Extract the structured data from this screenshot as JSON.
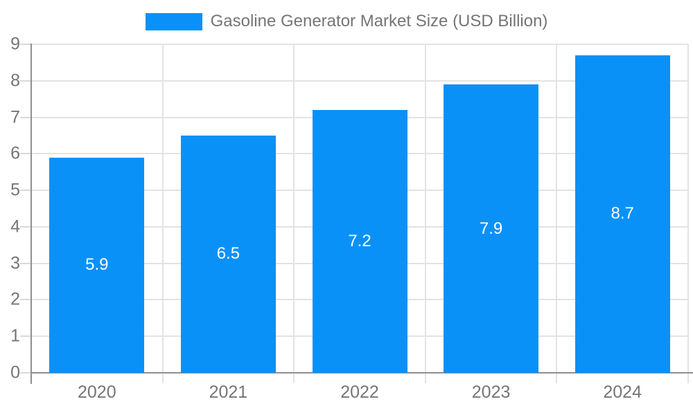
{
  "chart_data": {
    "type": "bar",
    "title": "Gasoline Generator Market Size (USD Billion)",
    "categories": [
      "2020",
      "2021",
      "2022",
      "2023",
      "2024"
    ],
    "series": [
      {
        "name": "Gasoline Generator Market Size (USD Billion)",
        "values": [
          5.9,
          6.5,
          7.2,
          7.9,
          8.7
        ],
        "color": "#0a91f8"
      }
    ],
    "xlabel": "",
    "ylabel": "",
    "ylim": [
      0,
      9
    ],
    "yticks": [
      0,
      1,
      2,
      3,
      4,
      5,
      6,
      7,
      8,
      9
    ],
    "grid": true,
    "legend_position": "top",
    "data_labels": {
      "show": true,
      "position": "center",
      "color": "#ffffff"
    },
    "colors": {
      "bar": "#0a91f8",
      "data_label": "#ffffff",
      "axis_text": "#757575",
      "gridline": "#e3e3e3",
      "tick": "#d9d9d9",
      "axis_line": "#8f8f8f",
      "background": "#ffffff"
    }
  }
}
